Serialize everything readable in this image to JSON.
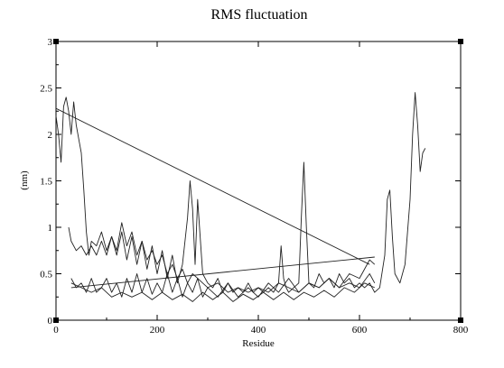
{
  "chart_data": {
    "type": "line",
    "title": "RMS fluctuation",
    "xlabel": "Residue",
    "ylabel": "(nm)",
    "xlim": [
      0,
      800
    ],
    "ylim": [
      0,
      3
    ],
    "x_ticks": [
      "0",
      "200",
      "400",
      "600",
      "800"
    ],
    "y_ticks": [
      "0",
      "0.5",
      "1",
      "1.5",
      "2",
      "2.5",
      "3"
    ],
    "grid": false,
    "legend": "none",
    "series": [
      {
        "x": [
          0,
          5,
          10,
          15,
          20,
          25,
          30,
          35,
          40,
          45,
          50,
          55,
          60,
          65,
          70,
          80,
          90,
          100,
          110,
          120,
          130,
          140,
          150,
          160,
          170,
          180,
          190,
          200,
          210,
          220,
          230,
          240,
          250,
          260,
          265,
          270,
          275,
          280,
          285,
          290,
          300,
          310,
          320,
          330,
          340,
          350,
          360,
          370,
          380,
          390,
          400,
          410,
          420,
          430,
          440,
          445,
          450,
          455,
          460,
          470,
          480,
          485,
          490,
          495,
          500,
          510,
          520,
          530,
          540,
          550,
          560,
          570,
          580,
          590,
          600,
          610,
          620,
          630,
          640,
          650,
          655,
          660,
          665,
          670,
          675,
          680,
          690,
          700,
          705,
          710,
          715,
          720,
          725,
          730
        ],
        "y": [
          2.2,
          2.0,
          1.7,
          2.3,
          2.4,
          2.25,
          2.0,
          2.35,
          2.1,
          1.95,
          1.8,
          1.4,
          0.95,
          0.7,
          0.85,
          0.8,
          0.95,
          0.75,
          0.9,
          0.7,
          0.95,
          0.65,
          0.9,
          0.6,
          0.85,
          0.55,
          0.8,
          0.5,
          0.75,
          0.45,
          0.7,
          0.4,
          0.6,
          1.1,
          1.5,
          1.2,
          0.6,
          1.3,
          0.9,
          0.5,
          0.4,
          0.35,
          0.45,
          0.3,
          0.4,
          0.3,
          0.35,
          0.3,
          0.4,
          0.3,
          0.35,
          0.3,
          0.35,
          0.3,
          0.4,
          0.8,
          0.45,
          0.35,
          0.3,
          0.35,
          0.4,
          1.1,
          1.7,
          1.0,
          0.4,
          0.35,
          0.5,
          0.4,
          0.45,
          0.35,
          0.5,
          0.4,
          0.45,
          0.35,
          0.4,
          0.35,
          0.4,
          0.3,
          0.35,
          0.7,
          1.3,
          1.4,
          0.9,
          0.5,
          0.45,
          0.4,
          0.6,
          1.3,
          2.0,
          2.45,
          2.1,
          1.6,
          1.8,
          1.85
        ]
      },
      {
        "x": [
          25,
          30,
          40,
          50,
          60,
          70,
          80,
          90,
          100,
          110,
          120,
          130,
          140,
          150,
          160,
          170,
          180,
          190,
          200,
          210,
          220,
          230,
          240,
          250,
          260,
          270,
          280,
          290,
          300,
          320,
          340,
          360,
          380,
          400,
          420,
          440,
          460,
          480,
          500,
          520,
          540,
          560,
          580,
          600,
          620,
          630
        ],
        "y": [
          1.0,
          0.85,
          0.75,
          0.8,
          0.7,
          0.8,
          0.7,
          0.85,
          0.7,
          0.9,
          0.75,
          1.05,
          0.8,
          0.95,
          0.7,
          0.85,
          0.65,
          0.75,
          0.6,
          0.7,
          0.5,
          0.6,
          0.45,
          0.55,
          0.4,
          0.5,
          0.45,
          0.4,
          0.35,
          0.4,
          0.3,
          0.35,
          0.3,
          0.35,
          0.3,
          0.4,
          0.35,
          0.3,
          0.4,
          0.35,
          0.45,
          0.35,
          0.4,
          0.35,
          0.5,
          0.4
        ]
      },
      {
        "x": [
          30,
          40,
          50,
          60,
          70,
          80,
          90,
          100,
          110,
          120,
          130,
          140,
          150,
          160,
          170,
          180,
          190,
          200,
          210,
          220,
          230,
          240,
          250,
          260,
          270,
          280,
          290,
          300,
          320,
          340,
          360,
          380,
          400,
          420,
          440,
          460,
          480,
          500,
          520,
          540,
          560,
          580,
          600,
          620,
          630
        ],
        "y": [
          0.45,
          0.35,
          0.4,
          0.3,
          0.45,
          0.3,
          0.35,
          0.45,
          0.3,
          0.4,
          0.25,
          0.45,
          0.3,
          0.5,
          0.3,
          0.45,
          0.28,
          0.4,
          0.3,
          0.5,
          0.3,
          0.45,
          0.25,
          0.4,
          0.3,
          0.45,
          0.25,
          0.35,
          0.25,
          0.4,
          0.25,
          0.35,
          0.25,
          0.4,
          0.3,
          0.45,
          0.3,
          0.4,
          0.35,
          0.45,
          0.35,
          0.5,
          0.45,
          0.65,
          0.6
        ]
      },
      {
        "x": [
          30,
          50,
          70,
          90,
          110,
          130,
          150,
          170,
          190,
          210,
          230,
          250,
          270,
          290,
          310,
          330,
          350,
          370,
          390,
          410,
          430,
          450,
          470,
          490,
          510,
          530,
          550,
          570,
          590,
          610,
          630
        ],
        "y": [
          0.4,
          0.35,
          0.3,
          0.35,
          0.25,
          0.3,
          0.25,
          0.3,
          0.22,
          0.3,
          0.22,
          0.28,
          0.2,
          0.3,
          0.22,
          0.3,
          0.2,
          0.28,
          0.22,
          0.3,
          0.22,
          0.3,
          0.22,
          0.3,
          0.25,
          0.32,
          0.25,
          0.35,
          0.3,
          0.4,
          0.35
        ]
      },
      {
        "x": [
          0,
          620
        ],
        "y": [
          2.28,
          0.6
        ]
      },
      {
        "x": [
          30,
          630
        ],
        "y": [
          0.35,
          0.68
        ]
      }
    ]
  }
}
